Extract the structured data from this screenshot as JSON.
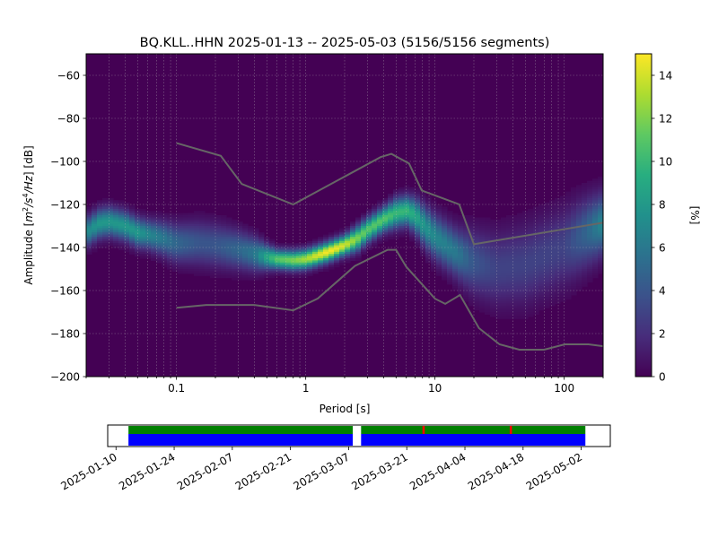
{
  "title": "BQ.KLL..HHN   2025-01-13 -- 2025-05-03  (5156/5156 segments)",
  "chart_data": [
    {
      "type": "heatmap",
      "title": "BQ.KLL..HHN   2025-01-13 -- 2025-05-03  (5156/5156 segments)",
      "xlabel": "Period [s]",
      "ylabel_parts": [
        "Amplitude [",
        "m",
        "2",
        "/",
        "s",
        "4",
        "/",
        "Hz",
        "] [dB]"
      ],
      "x_scale": "log",
      "xlim": [
        0.02,
        200
      ],
      "ylim": [
        -200,
        -50
      ],
      "x_ticks": [
        {
          "value": 0.1,
          "label": "0.1"
        },
        {
          "value": 1,
          "label": "1"
        },
        {
          "value": 10,
          "label": "10"
        },
        {
          "value": 100,
          "label": "100"
        }
      ],
      "y_ticks": [
        {
          "value": -60,
          "label": "−60"
        },
        {
          "value": -80,
          "label": "−80"
        },
        {
          "value": -100,
          "label": "−100"
        },
        {
          "value": -120,
          "label": "−120"
        },
        {
          "value": -140,
          "label": "−140"
        },
        {
          "value": -160,
          "label": "−160"
        },
        {
          "value": -180,
          "label": "−180"
        },
        {
          "value": -200,
          "label": "−200"
        }
      ],
      "grid": true,
      "colormap": "viridis",
      "colorbar": {
        "label": "[%]",
        "range": [
          0,
          15
        ],
        "ticks": [
          {
            "value": 0,
            "label": "0"
          },
          {
            "value": 2,
            "label": "2"
          },
          {
            "value": 4,
            "label": "4"
          },
          {
            "value": 6,
            "label": "6"
          },
          {
            "value": 8,
            "label": "8"
          },
          {
            "value": 10,
            "label": "10"
          },
          {
            "value": 12,
            "label": "12"
          },
          {
            "value": 14,
            "label": "14"
          }
        ]
      },
      "ppsd_mode": {
        "period": [
          0.02,
          0.025,
          0.03,
          0.04,
          0.05,
          0.06,
          0.08,
          0.1,
          0.15,
          0.2,
          0.3,
          0.4,
          0.5,
          0.6,
          0.8,
          1.0,
          1.2,
          1.5,
          2.0,
          2.5,
          3.0,
          4.0,
          5.0,
          6.0,
          7.0,
          8.0,
          10,
          15,
          20,
          30,
          50,
          100,
          150,
          200
        ],
        "db": [
          -133,
          -129,
          -128,
          -130,
          -133,
          -134,
          -136,
          -138,
          -138,
          -139,
          -141,
          -143,
          -144.5,
          -145.5,
          -146,
          -145.5,
          -144,
          -142,
          -139,
          -136,
          -132,
          -127,
          -124,
          -123,
          -125,
          -129,
          -135,
          -143,
          -147,
          -150,
          -148,
          -140,
          -133,
          -129
        ],
        "peak_percent": [
          7,
          8,
          8,
          8,
          8,
          7,
          6,
          5,
          4,
          4,
          5,
          6,
          9,
          11,
          12,
          13,
          14,
          15,
          14,
          12,
          11,
          11,
          10,
          10,
          9,
          8,
          7,
          6,
          4,
          3,
          3,
          3,
          5,
          7
        ],
        "spread_db": [
          6,
          6,
          6,
          6,
          6,
          6,
          7,
          8,
          9,
          9,
          8,
          7,
          5,
          4,
          4,
          4,
          4,
          4,
          4,
          5,
          5,
          5,
          6,
          6,
          7,
          8,
          9,
          10,
          13,
          15,
          16,
          16,
          14,
          12
        ]
      },
      "noise_model_high": {
        "period": [
          0.1,
          0.22,
          0.32,
          0.8,
          3.8,
          4.6,
          6.3,
          7.9,
          15.4,
          20,
          354.8
        ],
        "db": [
          -91.5,
          -97.4,
          -110.5,
          -120,
          -98,
          -96.5,
          -101,
          -113.5,
          -120,
          -138.5,
          -126
        ]
      },
      "noise_model_low": {
        "period": [
          0.1,
          0.17,
          0.4,
          0.8,
          1.24,
          2.4,
          4.3,
          5.0,
          6.0,
          10,
          12,
          15.6,
          21.9,
          31.6,
          45,
          70,
          101,
          154,
          328
        ],
        "db": [
          -168,
          -166.7,
          -166.7,
          -169.2,
          -163.7,
          -148.6,
          -141.1,
          -141.1,
          -149,
          -163.8,
          -166.2,
          -162.1,
          -177.5,
          -185,
          -187.5,
          -187.5,
          -185,
          -185,
          -187.5
        ]
      }
    },
    {
      "type": "timeline",
      "x_ticks": [
        "2025-01-10",
        "2025-01-24",
        "2025-02-07",
        "2025-02-21",
        "2025-03-07",
        "2025-03-21",
        "2025-04-04",
        "2025-04-18",
        "2025-05-02"
      ],
      "xlim": [
        "2025-01-08",
        "2025-05-09"
      ],
      "covered_green": [
        [
          "2025-01-13",
          "2025-03-08"
        ],
        [
          "2025-03-10",
          "2025-05-03"
        ]
      ],
      "covered_blue": [
        [
          "2025-01-13",
          "2025-03-08"
        ],
        [
          "2025-03-10",
          "2025-05-03"
        ]
      ],
      "gaps_red": [
        "2025-03-25",
        "2025-04-15"
      ],
      "colors": {
        "green": "#008000",
        "blue": "#0000ff",
        "red": "#ff0000"
      }
    }
  ],
  "colors": {
    "ppsd_line": "#666666",
    "background": "#ffffff"
  }
}
